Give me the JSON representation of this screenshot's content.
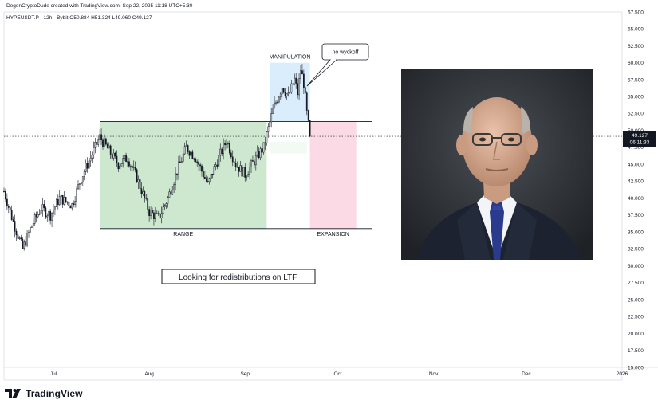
{
  "header": {
    "author_line": "DegenCryptoDude created with TradingView.com, Sep 22, 2025 11:18 UTC+5:30",
    "symbol_line": "HYPEUSDT.P · 12h · Bybit  O50.884  H51.324  L49.060  C49.127"
  },
  "price_tag": {
    "price": "49.127",
    "countdown": "06:11:33",
    "color": "#131722"
  },
  "footer": {
    "brand": "TradingView",
    "logo_icon": "tradingview-logo-icon"
  },
  "photo": {
    "subject": "man-in-suit-portrait"
  },
  "chart_data": {
    "type": "candlestick",
    "x_axis_labels": [
      "Jul",
      "Aug",
      "Sep",
      "Oct",
      "Nov",
      "Dec",
      "2026"
    ],
    "y_axis_ticks": [
      "67.500",
      "65.000",
      "62.500",
      "60.000",
      "57.500",
      "55.000",
      "52.500",
      "50.000",
      "47.500",
      "45.000",
      "42.500",
      "40.000",
      "37.500",
      "35.000",
      "32.500",
      "30.000",
      "27.500",
      "25.000",
      "22.500",
      "20.000",
      "17.500",
      "15.000"
    ],
    "ylim": [
      15,
      67.5
    ],
    "x_range": [
      "2025-06-15",
      "2026-01-01"
    ],
    "last_price": 49.127,
    "price_path": [
      [
        "2025-06-15",
        41.0
      ],
      [
        "2025-06-18",
        36.5
      ],
      [
        "2025-06-21",
        32.5
      ],
      [
        "2025-06-24",
        36.0
      ],
      [
        "2025-06-27",
        38.5
      ],
      [
        "2025-06-30",
        37.5
      ],
      [
        "2025-07-03",
        40.0
      ],
      [
        "2025-07-07",
        39.0
      ],
      [
        "2025-07-10",
        43.0
      ],
      [
        "2025-07-13",
        46.0
      ],
      [
        "2025-07-16",
        49.0
      ],
      [
        "2025-07-19",
        47.0
      ],
      [
        "2025-07-22",
        45.0
      ],
      [
        "2025-07-25",
        46.0
      ],
      [
        "2025-07-28",
        43.0
      ],
      [
        "2025-08-01",
        38.0
      ],
      [
        "2025-08-04",
        37.0
      ],
      [
        "2025-08-07",
        40.0
      ],
      [
        "2025-08-10",
        44.0
      ],
      [
        "2025-08-13",
        47.5
      ],
      [
        "2025-08-16",
        46.0
      ],
      [
        "2025-08-20",
        42.0
      ],
      [
        "2025-08-23",
        45.5
      ],
      [
        "2025-08-26",
        48.5
      ],
      [
        "2025-08-29",
        45.0
      ],
      [
        "2025-09-01",
        43.5
      ],
      [
        "2025-09-04",
        45.5
      ],
      [
        "2025-09-07",
        47.5
      ],
      [
        "2025-09-10",
        53.0
      ],
      [
        "2025-09-13",
        56.5
      ],
      [
        "2025-09-15",
        55.0
      ],
      [
        "2025-09-17",
        57.5
      ],
      [
        "2025-09-18",
        55.5
      ],
      [
        "2025-09-19",
        59.0
      ],
      [
        "2025-09-20",
        57.0
      ],
      [
        "2025-09-21",
        52.5
      ],
      [
        "2025-09-22",
        49.1
      ]
    ],
    "zones": [
      {
        "label": "RANGE",
        "color": "#a5d6a7",
        "x_from": "2025-07-16",
        "x_to": "2025-09-08",
        "y_from": 35.5,
        "y_to": 51.324
      },
      {
        "label": "MANIPULATION",
        "color": "#bbdefb",
        "x_from": "2025-09-09",
        "x_to": "2025-09-22",
        "y_from": 51.324,
        "y_to": 60.0
      },
      {
        "label": "EXPANSION",
        "color": "#f8bbd0",
        "x_from": "2025-09-22",
        "x_to": "2025-10-07",
        "y_from": 35.5,
        "y_to": 51.324
      },
      {
        "label": "",
        "color": "#e8f5e9",
        "x_from": "2025-09-09",
        "x_to": "2025-09-21",
        "y_from": 46.6,
        "y_to": 48.3
      }
    ],
    "lines": [
      {
        "kind": "resistance",
        "y": 51.324,
        "x_from": "2025-07-16",
        "x_to": "2025-10-12"
      },
      {
        "kind": "support",
        "y": 35.5,
        "x_from": "2025-07-16",
        "x_to": "2025-10-12"
      }
    ],
    "callout": "no wyckoff",
    "note": "Looking for redistributions on LTF."
  }
}
